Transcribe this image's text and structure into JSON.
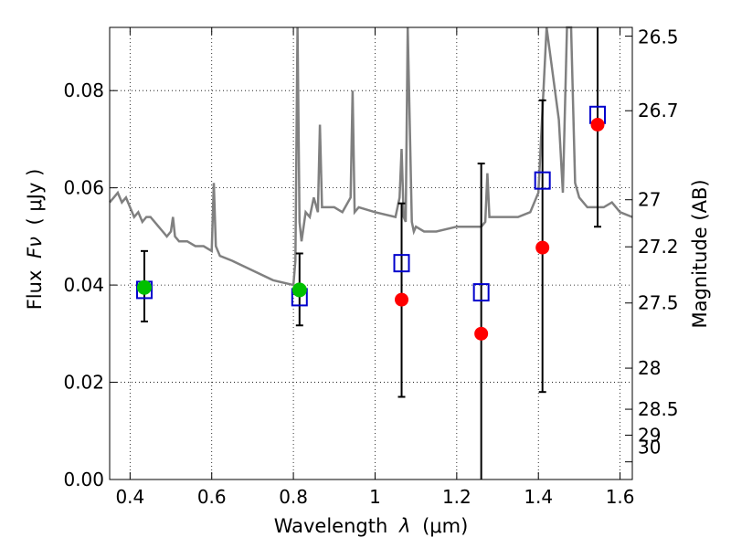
{
  "colors": {
    "spectrum": "#808080",
    "detection": "#00c000",
    "upper_limit": "#ff0000",
    "model": "#0000cc",
    "errorbar": "#000000"
  },
  "chart_data": {
    "type": "scatter",
    "xlabel_prefix": "Wavelength",
    "xlabel_symbol": "λ",
    "xlabel_unit": "(μm)",
    "ylabel_prefix": "Flux",
    "ylabel_symbol": "Fν",
    "ylabel_unit": "( μJy )",
    "y2label": "Magnitude (AB)",
    "xlim": [
      0.35,
      1.63
    ],
    "ylim": [
      0.0,
      0.093
    ],
    "grid": true,
    "x_ticks": [
      0.4,
      0.6,
      0.8,
      1.0,
      1.2,
      1.4,
      1.6
    ],
    "x_tick_labels": [
      "0.4",
      "0.6",
      "0.8",
      "1",
      "1.2",
      "1.4",
      "1.6"
    ],
    "y_ticks": [
      0.0,
      0.02,
      0.04,
      0.06,
      0.08
    ],
    "y_tick_labels": [
      "0.00",
      "0.02",
      "0.04",
      "0.06",
      "0.08"
    ],
    "y2_ticks": [
      26.5,
      26.7,
      27,
      27.2,
      27.5,
      28,
      28.5,
      29,
      30
    ],
    "y2_tick_labels": [
      "26.5",
      "26.7",
      "27",
      "27.2",
      "27.5",
      "28",
      "28.5",
      "29",
      "30"
    ],
    "spectrum": {
      "x": [
        0.35,
        0.36,
        0.37,
        0.38,
        0.39,
        0.4,
        0.41,
        0.42,
        0.43,
        0.44,
        0.45,
        0.46,
        0.47,
        0.48,
        0.49,
        0.5,
        0.505,
        0.51,
        0.52,
        0.54,
        0.56,
        0.58,
        0.6,
        0.605,
        0.61,
        0.615,
        0.62,
        0.65,
        0.7,
        0.75,
        0.8,
        0.805,
        0.81,
        0.815,
        0.82,
        0.83,
        0.84,
        0.85,
        0.86,
        0.865,
        0.87,
        0.88,
        0.9,
        0.92,
        0.94,
        0.945,
        0.95,
        0.96,
        1.0,
        1.05,
        1.06,
        1.065,
        1.07,
        1.075,
        1.08,
        1.09,
        1.095,
        1.1,
        1.12,
        1.15,
        1.2,
        1.24,
        1.26,
        1.27,
        1.275,
        1.28,
        1.3,
        1.35,
        1.38,
        1.4,
        1.42,
        1.45,
        1.46,
        1.47,
        1.48,
        1.49,
        1.5,
        1.52,
        1.54,
        1.56,
        1.58,
        1.6,
        1.63
      ],
      "y": [
        0.057,
        0.058,
        0.059,
        0.057,
        0.058,
        0.056,
        0.054,
        0.055,
        0.053,
        0.054,
        0.054,
        0.053,
        0.052,
        0.051,
        0.05,
        0.051,
        0.054,
        0.05,
        0.049,
        0.049,
        0.048,
        0.048,
        0.047,
        0.061,
        0.048,
        0.047,
        0.046,
        0.045,
        0.043,
        0.041,
        0.04,
        0.045,
        0.093,
        0.053,
        0.049,
        0.055,
        0.054,
        0.058,
        0.055,
        0.073,
        0.056,
        0.056,
        0.056,
        0.055,
        0.058,
        0.08,
        0.055,
        0.056,
        0.055,
        0.054,
        0.058,
        0.068,
        0.054,
        0.053,
        0.093,
        0.053,
        0.051,
        0.052,
        0.051,
        0.051,
        0.052,
        0.052,
        0.052,
        0.053,
        0.063,
        0.054,
        0.054,
        0.054,
        0.055,
        0.059,
        0.093,
        0.074,
        0.059,
        0.093,
        0.093,
        0.061,
        0.058,
        0.056,
        0.056,
        0.056,
        0.057,
        0.055,
        0.054
      ]
    },
    "detections": [
      {
        "x": 0.435,
        "y": 0.0395
      },
      {
        "x": 0.815,
        "y": 0.039
      }
    ],
    "upper_limits": [
      {
        "x": 1.065,
        "y": 0.037
      },
      {
        "x": 1.26,
        "y": 0.03
      },
      {
        "x": 1.41,
        "y": 0.0477
      },
      {
        "x": 1.545,
        "y": 0.073
      }
    ],
    "model": [
      {
        "x": 0.435,
        "y": 0.039
      },
      {
        "x": 0.815,
        "y": 0.0375
      },
      {
        "x": 1.065,
        "y": 0.0445
      },
      {
        "x": 1.26,
        "y": 0.0385
      },
      {
        "x": 1.41,
        "y": 0.0615
      },
      {
        "x": 1.545,
        "y": 0.075
      }
    ],
    "errorbars": [
      {
        "x": 0.435,
        "low": 0.0325,
        "high": 0.047
      },
      {
        "x": 0.815,
        "low": 0.0317,
        "high": 0.0465
      },
      {
        "x": 1.065,
        "low": 0.017,
        "high": 0.0568
      },
      {
        "x": 1.26,
        "low": 0.0,
        "high": 0.065
      },
      {
        "x": 1.41,
        "low": 0.018,
        "high": 0.078
      },
      {
        "x": 1.545,
        "low": 0.052,
        "high": 0.093
      }
    ]
  }
}
